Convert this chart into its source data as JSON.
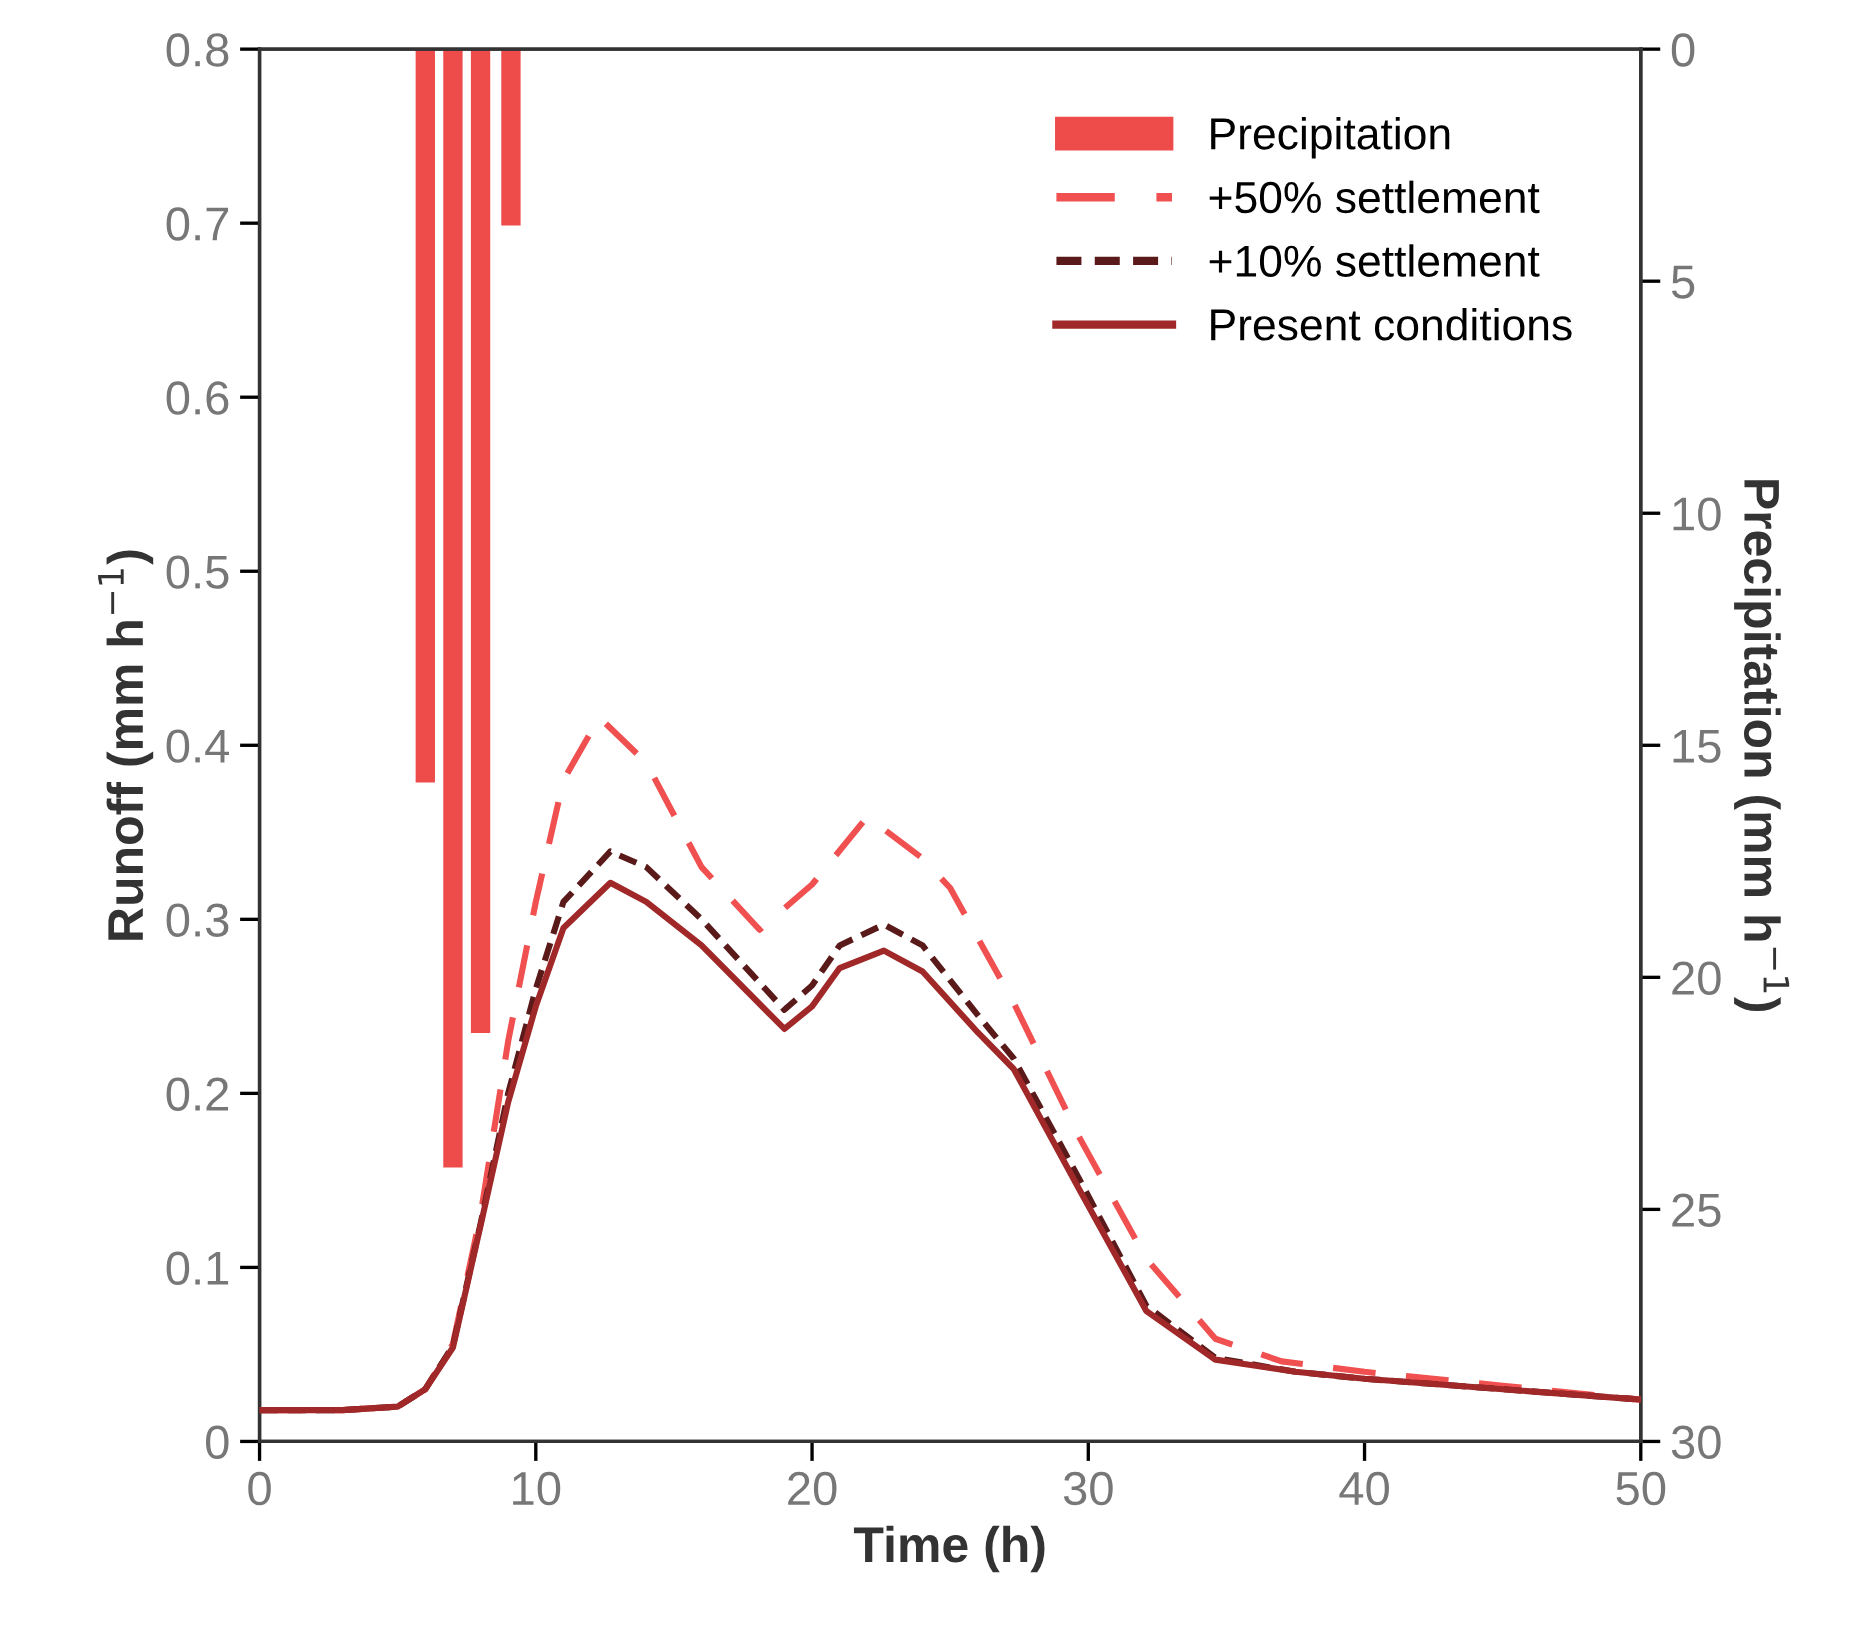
{
  "chart_data": {
    "type": "line",
    "xlabel": "Time (h)",
    "ylabel": "Runoff (mm h$^{−1}$)",
    "y2label": "Precipitation (mm h$^{−1}$)",
    "xlim": [
      0,
      50
    ],
    "xticks": [
      0,
      10,
      20,
      30,
      40,
      50
    ],
    "ylim": [
      0,
      0.8
    ],
    "yticks": [
      0,
      0.1,
      0.2,
      0.3,
      0.4,
      0.5,
      0.6,
      0.7,
      0.8
    ],
    "y2lim": [
      30,
      0
    ],
    "y2ticks": [
      0,
      5,
      10,
      15,
      20,
      25,
      30
    ],
    "legend": "top right",
    "grid": false,
    "series": [
      {
        "name": "Precipitation",
        "type": "bar",
        "axis": "y2",
        "color": "#ee4b4b",
        "x": [
          6,
          7,
          8,
          9.1
        ],
        "values": [
          15.8,
          24.1,
          21.2,
          3.8
        ]
      },
      {
        "name": "+50% settlement",
        "line_style": "dashed",
        "color": "#f05050",
        "x": [
          0,
          3,
          5,
          6,
          7,
          8,
          9,
          10,
          11,
          12.3,
          14,
          16,
          18.1,
          20,
          22,
          24,
          25,
          27.3,
          29.7,
          32.1,
          34.6,
          37,
          40,
          45,
          50
        ],
        "values": [
          0.018,
          0.018,
          0.02,
          0.03,
          0.056,
          0.13,
          0.23,
          0.31,
          0.38,
          0.416,
          0.39,
          0.33,
          0.294,
          0.32,
          0.359,
          0.335,
          0.318,
          0.252,
          0.174,
          0.105,
          0.059,
          0.046,
          0.04,
          0.032,
          0.024
        ]
      },
      {
        "name": "+10% settlement",
        "line_style": "dotted",
        "color": "#5a1a1a",
        "x": [
          0,
          3,
          5,
          6,
          7,
          8,
          9,
          10,
          11,
          12.7,
          14,
          16,
          19,
          20,
          21,
          22.6,
          24,
          26,
          27.3,
          29.7,
          32.1,
          34.6,
          37.5,
          40,
          45,
          50
        ],
        "values": [
          0.018,
          0.018,
          0.02,
          0.03,
          0.055,
          0.125,
          0.2,
          0.26,
          0.31,
          0.339,
          0.33,
          0.3,
          0.248,
          0.262,
          0.285,
          0.297,
          0.285,
          0.245,
          0.22,
          0.15,
          0.078,
          0.048,
          0.04,
          0.036,
          0.03,
          0.024
        ]
      },
      {
        "name": "Present conditions",
        "line_style": "solid",
        "color": "#a02828",
        "x": [
          0,
          3,
          5,
          6,
          7,
          8,
          9,
          10,
          11,
          12.7,
          14,
          16,
          19,
          20,
          21,
          22.6,
          24,
          26,
          27.3,
          29.7,
          32.1,
          34.6,
          37.5,
          40,
          45,
          50
        ],
        "values": [
          0.018,
          0.018,
          0.02,
          0.03,
          0.054,
          0.124,
          0.195,
          0.25,
          0.295,
          0.321,
          0.31,
          0.285,
          0.237,
          0.25,
          0.272,
          0.282,
          0.27,
          0.235,
          0.214,
          0.144,
          0.075,
          0.047,
          0.04,
          0.036,
          0.03,
          0.024
        ]
      }
    ]
  }
}
